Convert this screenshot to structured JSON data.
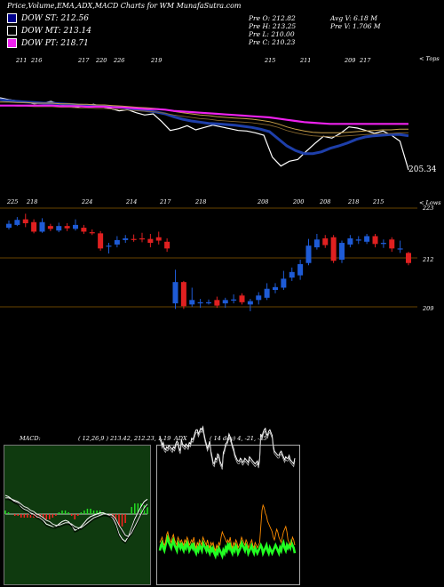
{
  "title": "Price,Volume,EMA,ADX,MACD Charts for WM MunafaSutra.com",
  "legend": [
    {
      "label": "DOW ST: 212.56",
      "color": "#00008b"
    },
    {
      "label": "DOW MT: 213.14",
      "color": "#000000"
    },
    {
      "label": "DOW PT: 218.71",
      "color": "#ee22ee"
    }
  ],
  "ohlc": {
    "open": "Pre  O: 212.82",
    "high": "Pre  H: 213.25",
    "low": "Pre  L: 210.00",
    "close": "Pre  C: 210.23",
    "avg_vol": "Avg V: 6.18  M",
    "pre_vol": "Pre  V: 1.706  M"
  },
  "corner_labels": {
    "tops": "< Tops",
    "lows": "< Lows"
  },
  "tops_labels": [
    "211",
    "216",
    "217",
    "220",
    "226",
    "219",
    "215",
    "211",
    "209",
    "217"
  ],
  "lows_labels": [
    "225",
    "218",
    "224",
    "214",
    "217",
    "218",
    "208",
    "200",
    "208",
    "218",
    "215"
  ],
  "last_price_label": "205.34",
  "price_axis": [
    "223",
    "212",
    "209"
  ],
  "macd_label": "MACD:",
  "macd_values": "( 12,26,9 ) 213.42,  212.23,  1.19",
  "adx_label": "ADX",
  "adx_values": "( 14  day) 4,  -21,  -25",
  "colors": {
    "up_candle": "#1e5bd6",
    "down_candle": "#e02020",
    "ema_short": "#1e3faa",
    "ema_pt": "#ee22ee",
    "macd_hist": "#ff2020",
    "macd_pos": "#22dd22",
    "adx_plus": "#22ff22",
    "adx_minus": "#ff8c00",
    "grid_line": "#8b5a00"
  },
  "chart_data": [
    {
      "type": "line",
      "title": "",
      "series": [
        {
          "name": "Price",
          "values": [
            217.5,
            217.2,
            217.0,
            216.8,
            216.5,
            216.6,
            216.9,
            216.4,
            216.2,
            215.9,
            216.1,
            216.4,
            216.0,
            215.7,
            215.3,
            215.5,
            215.0,
            214.6,
            214.8,
            213.5,
            212.0,
            212.3,
            212.8,
            212.1,
            212.5,
            212.9,
            212.6,
            212.3,
            212.0,
            211.9,
            211.6,
            211.2,
            207.5,
            206.0,
            206.8,
            207.1,
            208.5,
            209.8,
            211.0,
            210.7,
            211.5,
            212.6,
            212.4,
            212.0,
            211.5,
            211.9,
            211.2,
            210.2,
            205.34
          ]
        },
        {
          "name": "DOW ST: 212.56",
          "values": [
            217.2,
            217.0,
            216.9,
            216.8,
            216.7,
            216.6,
            216.6,
            216.5,
            216.4,
            216.3,
            216.2,
            216.2,
            216.1,
            216.0,
            215.9,
            215.7,
            215.5,
            215.3,
            215.1,
            214.8,
            214.3,
            213.9,
            213.6,
            213.4,
            213.2,
            213.1,
            213.0,
            212.9,
            212.7,
            212.5,
            212.2,
            211.8,
            210.6,
            209.4,
            208.6,
            208.1,
            208.1,
            208.4,
            209.0,
            209.4,
            209.9,
            210.5,
            210.9,
            211.1,
            211.2,
            211.3,
            211.3,
            211.1,
            212.56
          ]
        },
        {
          "name": "DOW MT: 213.14",
          "values": [
            216.8,
            216.8,
            216.7,
            216.7,
            216.6,
            216.6,
            216.6,
            216.5,
            216.5,
            216.4,
            216.4,
            216.3,
            216.3,
            216.2,
            216.1,
            216.0,
            215.9,
            215.8,
            215.7,
            215.5,
            215.2,
            215.0,
            214.8,
            214.6,
            214.5,
            214.3,
            214.2,
            214.1,
            214.0,
            213.9,
            213.7,
            213.5,
            213.1,
            212.6,
            212.2,
            211.9,
            211.7,
            211.6,
            211.6,
            211.6,
            211.7,
            211.8,
            211.9,
            212.0,
            212.1,
            212.1,
            212.2,
            212.2,
            213.14
          ]
        },
        {
          "name": "DOW PT: 218.71",
          "values": [
            216.2,
            216.2,
            216.2,
            216.2,
            216.2,
            216.2,
            216.2,
            216.1,
            216.1,
            216.1,
            216.0,
            216.0,
            216.0,
            215.9,
            215.9,
            215.8,
            215.7,
            215.6,
            215.6,
            215.5,
            215.3,
            215.2,
            215.1,
            215.0,
            214.9,
            214.8,
            214.7,
            214.6,
            214.5,
            214.4,
            214.3,
            214.2,
            214.0,
            213.8,
            213.6,
            213.4,
            213.3,
            213.2,
            213.1,
            213.1,
            213.1,
            213.1,
            213.1,
            213.1,
            213.1,
            213.1,
            213.1,
            213.1,
            218.71
          ]
        }
      ]
    },
    {
      "type": "bar",
      "title": "",
      "candles": [
        {
          "o": 219.5,
          "c": 220.2,
          "h": 220.8,
          "l": 219.2
        },
        {
          "o": 220.0,
          "c": 220.9,
          "h": 221.4,
          "l": 219.8
        },
        {
          "o": 221.0,
          "c": 220.3,
          "h": 222.0,
          "l": 219.6
        },
        {
          "o": 220.5,
          "c": 218.8,
          "h": 221.0,
          "l": 218.5
        },
        {
          "o": 218.8,
          "c": 220.5,
          "h": 221.2,
          "l": 218.6
        },
        {
          "o": 219.8,
          "c": 219.3,
          "h": 220.2,
          "l": 218.9
        },
        {
          "o": 219.0,
          "c": 219.8,
          "h": 220.4,
          "l": 218.7
        },
        {
          "o": 219.8,
          "c": 219.4,
          "h": 220.3,
          "l": 218.9
        },
        {
          "o": 219.3,
          "c": 220.0,
          "h": 221.0,
          "l": 219.0
        },
        {
          "o": 219.5,
          "c": 218.8,
          "h": 220.0,
          "l": 218.4
        },
        {
          "o": 218.7,
          "c": 218.5,
          "h": 219.2,
          "l": 218.2
        },
        {
          "o": 218.5,
          "c": 215.8,
          "h": 218.9,
          "l": 215.4
        },
        {
          "o": 216.2,
          "c": 216.3,
          "h": 216.8,
          "l": 214.9
        },
        {
          "o": 216.5,
          "c": 217.3,
          "h": 218.0,
          "l": 216.0
        },
        {
          "o": 217.3,
          "c": 217.6,
          "h": 218.2,
          "l": 216.8
        },
        {
          "o": 217.5,
          "c": 217.4,
          "h": 218.3,
          "l": 217.0
        },
        {
          "o": 217.6,
          "c": 217.5,
          "h": 218.6,
          "l": 216.9
        },
        {
          "o": 217.5,
          "c": 216.8,
          "h": 218.4,
          "l": 216.0
        },
        {
          "o": 217.8,
          "c": 217.2,
          "h": 218.8,
          "l": 216.5
        },
        {
          "o": 217.0,
          "c": 215.8,
          "h": 217.6,
          "l": 215.2
        },
        {
          "o": 206.0,
          "c": 209.8,
          "h": 212.0,
          "l": 205.0
        },
        {
          "o": 209.8,
          "c": 205.5,
          "h": 210.0,
          "l": 205.0
        },
        {
          "o": 205.8,
          "c": 206.6,
          "h": 208.8,
          "l": 205.4
        },
        {
          "o": 206.0,
          "c": 206.2,
          "h": 206.8,
          "l": 205.2
        },
        {
          "o": 206.0,
          "c": 206.2,
          "h": 206.7,
          "l": 205.8
        },
        {
          "o": 206.6,
          "c": 205.6,
          "h": 207.2,
          "l": 205.2
        },
        {
          "o": 206.0,
          "c": 206.6,
          "h": 207.0,
          "l": 205.2
        },
        {
          "o": 206.5,
          "c": 206.7,
          "h": 207.6,
          "l": 206.0
        },
        {
          "o": 207.4,
          "c": 206.2,
          "h": 207.8,
          "l": 205.8
        },
        {
          "o": 205.8,
          "c": 206.4,
          "h": 206.8,
          "l": 204.6
        },
        {
          "o": 206.6,
          "c": 207.4,
          "h": 208.0,
          "l": 205.8
        },
        {
          "o": 207.0,
          "c": 208.6,
          "h": 209.6,
          "l": 206.6
        },
        {
          "o": 208.4,
          "c": 208.9,
          "h": 209.6,
          "l": 207.8
        },
        {
          "o": 208.8,
          "c": 210.4,
          "h": 211.8,
          "l": 208.4
        },
        {
          "o": 210.6,
          "c": 211.6,
          "h": 212.4,
          "l": 210.0
        },
        {
          "o": 211.0,
          "c": 213.0,
          "h": 213.8,
          "l": 210.2
        },
        {
          "o": 213.2,
          "c": 216.3,
          "h": 217.5,
          "l": 212.8
        },
        {
          "o": 216.0,
          "c": 217.4,
          "h": 218.4,
          "l": 215.6
        },
        {
          "o": 217.6,
          "c": 216.4,
          "h": 218.2,
          "l": 215.9
        },
        {
          "o": 217.8,
          "c": 213.6,
          "h": 218.2,
          "l": 213.2
        },
        {
          "o": 213.8,
          "c": 216.8,
          "h": 217.2,
          "l": 213.2
        },
        {
          "o": 216.5,
          "c": 217.6,
          "h": 218.2,
          "l": 216.0
        },
        {
          "o": 217.2,
          "c": 217.4,
          "h": 218.0,
          "l": 216.6
        },
        {
          "o": 217.0,
          "c": 218.0,
          "h": 218.4,
          "l": 216.6
        },
        {
          "o": 218.0,
          "c": 216.6,
          "h": 218.4,
          "l": 216.0
        },
        {
          "o": 216.6,
          "c": 216.8,
          "h": 217.4,
          "l": 215.9
        },
        {
          "o": 217.4,
          "c": 215.8,
          "h": 217.8,
          "l": 215.2
        },
        {
          "o": 215.8,
          "c": 215.8,
          "h": 217.2,
          "l": 215.0
        },
        {
          "o": 215.0,
          "c": 213.2,
          "h": 215.2,
          "l": 212.8
        }
      ]
    },
    {
      "type": "line",
      "title": "",
      "series": [
        {
          "name": "MACD",
          "values": [
            1.5,
            1.4,
            1.2,
            1.0,
            0.9,
            0.6,
            0.4,
            0.3,
            0.1,
            0.0,
            -0.2,
            -0.3,
            -0.5,
            -0.8,
            -0.9,
            -1.0,
            -1.0,
            -0.8,
            -0.6,
            -0.5,
            -0.6,
            -0.9,
            -1.3,
            -1.2,
            -1.0,
            -0.7,
            -0.4,
            -0.2,
            -0.1,
            0.0,
            0.1,
            0.1,
            0.0,
            -0.1,
            -0.3,
            -0.8,
            -1.6,
            -2.0,
            -2.2,
            -1.8,
            -1.1,
            -0.4,
            0.1,
            0.6,
            1.0,
            1.19
          ]
        },
        {
          "name": "Signal",
          "values": [
            1.3,
            1.3,
            1.2,
            1.1,
            1.0,
            0.8,
            0.6,
            0.5,
            0.3,
            0.2,
            0.0,
            -0.1,
            -0.3,
            -0.5,
            -0.6,
            -0.8,
            -0.9,
            -0.9,
            -0.8,
            -0.7,
            -0.7,
            -0.8,
            -1.0,
            -1.1,
            -1.1,
            -0.9,
            -0.7,
            -0.5,
            -0.3,
            -0.2,
            -0.1,
            0.0,
            0.0,
            0.0,
            -0.1,
            -0.4,
            -0.9,
            -1.3,
            -1.7,
            -1.8,
            -1.5,
            -1.0,
            -0.5,
            0.0,
            0.5,
            0.8
          ]
        }
      ]
    },
    {
      "type": "line",
      "title": "",
      "series": [
        {
          "name": "ADX",
          "values": [
            38,
            36,
            32,
            34,
            30,
            29,
            31,
            30,
            32,
            31,
            30,
            29,
            31,
            30,
            33,
            35,
            34,
            30,
            28,
            36,
            33,
            32,
            31,
            33,
            32,
            31,
            34,
            33,
            37,
            36,
            38,
            41,
            43,
            43,
            40,
            42,
            44,
            43,
            45,
            40,
            36,
            33,
            30,
            32,
            35,
            28,
            24,
            20,
            19,
            23,
            22,
            26,
            25,
            21,
            19,
            17,
            27,
            29,
            33,
            34,
            36,
            40,
            38,
            35,
            32,
            30,
            26,
            24,
            22,
            21,
            21,
            23,
            22,
            20,
            21,
            23,
            22,
            21,
            20,
            24,
            23,
            22,
            21,
            20,
            19,
            20,
            21,
            18,
            23,
            40,
            38,
            41,
            43,
            44,
            40,
            39,
            42,
            43,
            41,
            39,
            32,
            28,
            27,
            26,
            25,
            25,
            27,
            28,
            26,
            24,
            22,
            24,
            23,
            23,
            25,
            22,
            21,
            20,
            19,
            23
          ]
        },
        {
          "name": "+DI",
          "values": [
            11,
            13,
            14,
            12,
            11,
            13,
            15,
            16,
            14,
            13,
            12,
            14,
            15,
            13,
            12,
            11,
            14,
            13,
            12,
            14,
            12,
            11,
            13,
            12,
            14,
            13,
            11,
            12,
            13,
            12,
            14,
            11,
            10,
            12,
            11,
            13,
            12,
            11,
            14,
            13,
            12,
            11,
            13,
            11,
            10,
            12,
            11,
            12,
            10,
            9,
            11,
            10,
            12,
            11,
            10,
            9,
            11,
            10,
            12,
            11,
            13,
            12,
            14,
            11,
            10,
            12,
            11,
            13,
            12,
            10,
            11,
            12,
            14,
            13,
            12,
            11,
            13,
            12,
            10,
            11,
            12,
            13,
            11,
            10,
            12,
            11,
            10,
            11,
            12,
            13,
            12,
            10,
            11,
            12,
            13,
            11,
            10,
            12,
            11,
            10,
            11,
            12,
            13,
            12,
            11,
            10,
            12,
            11,
            13,
            14,
            12,
            11,
            13,
            12,
            13,
            12,
            14,
            13,
            12,
            10
          ]
        },
        {
          "name": "-DI",
          "values": [
            14,
            15,
            16,
            14,
            13,
            14,
            17,
            18,
            16,
            15,
            14,
            16,
            17,
            15,
            14,
            13,
            16,
            15,
            14,
            15,
            14,
            13,
            15,
            14,
            16,
            15,
            13,
            14,
            15,
            14,
            16,
            13,
            12,
            14,
            13,
            15,
            14,
            13,
            16,
            15,
            14,
            13,
            15,
            13,
            12,
            14,
            13,
            14,
            12,
            11,
            13,
            12,
            14,
            13,
            16,
            18,
            17,
            16,
            15,
            14,
            15,
            14,
            16,
            13,
            12,
            14,
            13,
            15,
            14,
            12,
            13,
            14,
            16,
            15,
            14,
            13,
            15,
            14,
            12,
            13,
            14,
            15,
            13,
            12,
            14,
            13,
            12,
            13,
            14,
            20,
            26,
            28,
            27,
            25,
            24,
            22,
            21,
            20,
            19,
            18,
            16,
            15,
            17,
            19,
            18,
            16,
            15,
            14,
            16,
            18,
            19,
            20,
            18,
            15,
            14,
            13,
            14,
            16,
            15,
            13
          ]
        }
      ]
    }
  ]
}
